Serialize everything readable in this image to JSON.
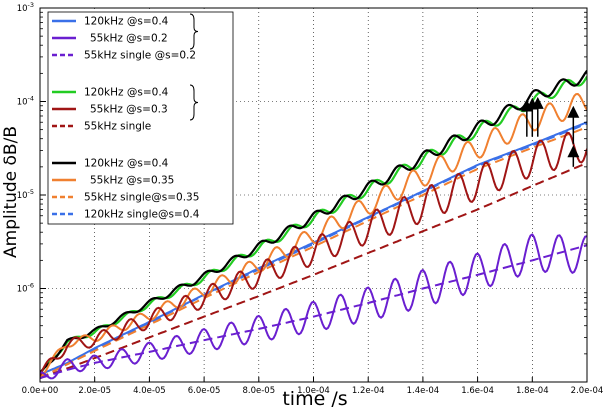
{
  "chart_data": {
    "type": "line",
    "xlabel": "time /s",
    "ylabel": "Amplitude  δB/B",
    "xlim": [
      0,
      0.0002
    ],
    "ylim": [
      1e-07,
      0.001
    ],
    "yscale": "log",
    "grid": true,
    "legend_position": "top-left",
    "x_ticks": [
      "0.0e+00",
      "2.0e-05",
      "4.0e-05",
      "6.0e-05",
      "8.0e-05",
      "1.0e-04",
      "1.2e-04",
      "1.4e-04",
      "1.6e-04",
      "1.8e-04",
      "2.0e-04"
    ],
    "x_tick_values": [
      0,
      2e-05,
      4e-05,
      6e-05,
      8e-05,
      0.0001,
      0.00012,
      0.00014,
      0.00016,
      0.00018,
      0.0002
    ],
    "y_ticks": [
      {
        "base": "10",
        "exp": "-6",
        "value": 1e-06
      },
      {
        "base": "10",
        "exp": "-5",
        "value": 1e-05
      },
      {
        "base": "10",
        "exp": "-4",
        "value": 0.0001
      },
      {
        "base": "10",
        "exp": "-3",
        "value": 0.001
      }
    ],
    "legend_groups": [
      {
        "entries": [
          {
            "label": "120kHz @s=0.4",
            "color": "#3a70e8",
            "dash": false
          },
          {
            "label": "55kHz @s=0.2",
            "color": "#6a1fd0",
            "dash": false
          },
          {
            "label": "55kHz single @s=0.2",
            "color": "#6a1fd0",
            "dash": true
          }
        ]
      },
      {
        "entries": [
          {
            "label": "120kHz @s=0.4",
            "color": "#22cc22",
            "dash": false
          },
          {
            "label": "55kHz @s=0.3",
            "color": "#a01515",
            "dash": false
          },
          {
            "label": "55kHz single",
            "color": "#a01515",
            "dash": true
          }
        ]
      },
      {
        "entries": [
          {
            "label": "120kHz @s=0.4",
            "color": "#000000",
            "dash": false
          },
          {
            "label": "55kHz @s=0.35",
            "color": "#f08030",
            "dash": false
          },
          {
            "label": "55kHz single@s=0.35",
            "color": "#f08030",
            "dash": true
          },
          {
            "label": "120kHz single@s=0.4",
            "color": "#3a70e8",
            "dash": true
          }
        ]
      }
    ],
    "series": [
      {
        "color": "#22cc22",
        "dash": false,
        "width": 2.2,
        "oscillation": 0.06,
        "x": [
          0,
          1e-05,
          2e-05,
          4e-05,
          6e-05,
          8e-05,
          0.0001,
          0.00012,
          0.00014,
          0.00016,
          0.00018,
          0.0002
        ],
        "y": [
          1.2e-07,
          2.7e-07,
          3.4e-07,
          6.8e-07,
          1.3e-06,
          2.7e-06,
          5.6e-06,
          1.15e-05,
          2.4e-05,
          4.9e-05,
          0.0001,
          0.000185
        ]
      },
      {
        "color": "#000000",
        "dash": false,
        "width": 2.2,
        "oscillation": 0.06,
        "x": [
          0,
          1e-05,
          2e-05,
          4e-05,
          6e-05,
          8e-05,
          0.0001,
          0.00012,
          0.00014,
          0.00016,
          0.00018,
          0.0002
        ],
        "y": [
          1.2e-07,
          2.7e-07,
          3.5e-07,
          7e-07,
          1.35e-06,
          2.8e-06,
          5.8e-06,
          1.2e-05,
          2.5e-05,
          5.2e-05,
          0.000112,
          0.00019
        ]
      },
      {
        "color": "#3a70e8",
        "dash": false,
        "width": 2.0,
        "oscillation": 0.0,
        "x": [
          0,
          1e-05,
          2e-05,
          4e-05,
          6e-05,
          8e-05,
          0.0001,
          0.00012,
          0.00014,
          0.00016,
          0.00018,
          0.0002
        ],
        "y": [
          1.2e-07,
          1.6e-07,
          2.3e-07,
          4.4e-07,
          8.6e-07,
          1.65e-06,
          3.1e-06,
          5.8e-06,
          1.1e-05,
          2.1e-05,
          3.5e-05,
          6e-05
        ]
      },
      {
        "color": "#3a70e8",
        "dash": true,
        "width": 2.0,
        "oscillation": 0.0,
        "x": [
          0,
          1e-05,
          2e-05,
          4e-05,
          6e-05,
          8e-05,
          0.0001,
          0.00012,
          0.00014,
          0.00016,
          0.00018,
          0.0002
        ],
        "y": [
          1.1e-07,
          1.55e-07,
          2.2e-07,
          4.3e-07,
          8.5e-07,
          1.6e-06,
          3e-06,
          5.7e-06,
          1.08e-05,
          2.05e-05,
          3.4e-05,
          5.8e-05
        ]
      },
      {
        "color": "#f08030",
        "dash": false,
        "width": 2.0,
        "oscillation": 0.12,
        "x": [
          0,
          1e-05,
          2e-05,
          4e-05,
          6e-05,
          8e-05,
          0.0001,
          0.00012,
          0.00014,
          0.00016,
          0.00018,
          0.0002
        ],
        "y": [
          1.2e-07,
          2.6e-07,
          3e-07,
          5.2e-07,
          9.5e-07,
          1.8e-06,
          3.7e-06,
          7.8e-06,
          1.6e-05,
          3.2e-05,
          6.3e-05,
          0.0001
        ]
      },
      {
        "color": "#f08030",
        "dash": true,
        "width": 2.0,
        "oscillation": 0.0,
        "x": [
          0,
          1e-05,
          2e-05,
          4e-05,
          6e-05,
          8e-05,
          0.0001,
          0.00012,
          0.00014,
          0.00016,
          0.00018,
          0.0002
        ],
        "y": [
          1.1e-07,
          1.55e-07,
          2.15e-07,
          4.1e-07,
          7.9e-07,
          1.5e-06,
          2.8e-06,
          5.3e-06,
          1e-05,
          1.9e-05,
          3.2e-05,
          5.3e-05
        ]
      },
      {
        "color": "#a01515",
        "dash": false,
        "width": 2.0,
        "oscillation": 0.18,
        "x": [
          0,
          1e-05,
          2e-05,
          4e-05,
          6e-05,
          8e-05,
          0.0001,
          0.00012,
          0.00014,
          0.00016,
          0.00018,
          0.0002
        ],
        "y": [
          1.2e-07,
          2.5e-07,
          2.8e-07,
          4.6e-07,
          8e-07,
          1.4e-06,
          2.5e-06,
          4.4e-06,
          7.8e-06,
          1.35e-05,
          2.4e-05,
          3.5e-05
        ]
      },
      {
        "color": "#a01515",
        "dash": true,
        "width": 2.0,
        "oscillation": 0.0,
        "x": [
          0,
          1e-05,
          2e-05,
          4e-05,
          6e-05,
          8e-05,
          0.0001,
          0.00012,
          0.00014,
          0.00016,
          0.00018,
          0.0002
        ],
        "y": [
          1.1e-07,
          1.4e-07,
          1.8e-07,
          3e-07,
          5e-07,
          8.3e-07,
          1.4e-06,
          2.4e-06,
          4.1e-06,
          7e-06,
          1.25e-05,
          2.2e-05
        ]
      },
      {
        "color": "#6a1fd0",
        "dash": false,
        "width": 2.0,
        "oscillation": 0.2,
        "x": [
          0,
          1e-05,
          2e-05,
          4e-05,
          6e-05,
          8e-05,
          0.0001,
          0.00012,
          0.00014,
          0.00016,
          0.00018,
          0.0002
        ],
        "y": [
          1.1e-07,
          1.5e-07,
          1.6e-07,
          2.1e-07,
          2.8e-07,
          3.7e-07,
          5e-07,
          6.8e-07,
          1e-06,
          1.5e-06,
          2.4e-06,
          2.3e-06
        ]
      },
      {
        "color": "#6a1fd0",
        "dash": true,
        "width": 2.0,
        "oscillation": 0.0,
        "x": [
          0,
          1e-05,
          2e-05,
          4e-05,
          6e-05,
          8e-05,
          0.0001,
          0.00012,
          0.00014,
          0.00016,
          0.00018,
          0.0002
        ],
        "y": [
          1.1e-07,
          1.35e-07,
          1.6e-07,
          2.1e-07,
          2.8e-07,
          3.7e-07,
          5e-07,
          7e-07,
          1e-06,
          1.4e-06,
          2e-06,
          2.9e-06
        ]
      }
    ]
  }
}
